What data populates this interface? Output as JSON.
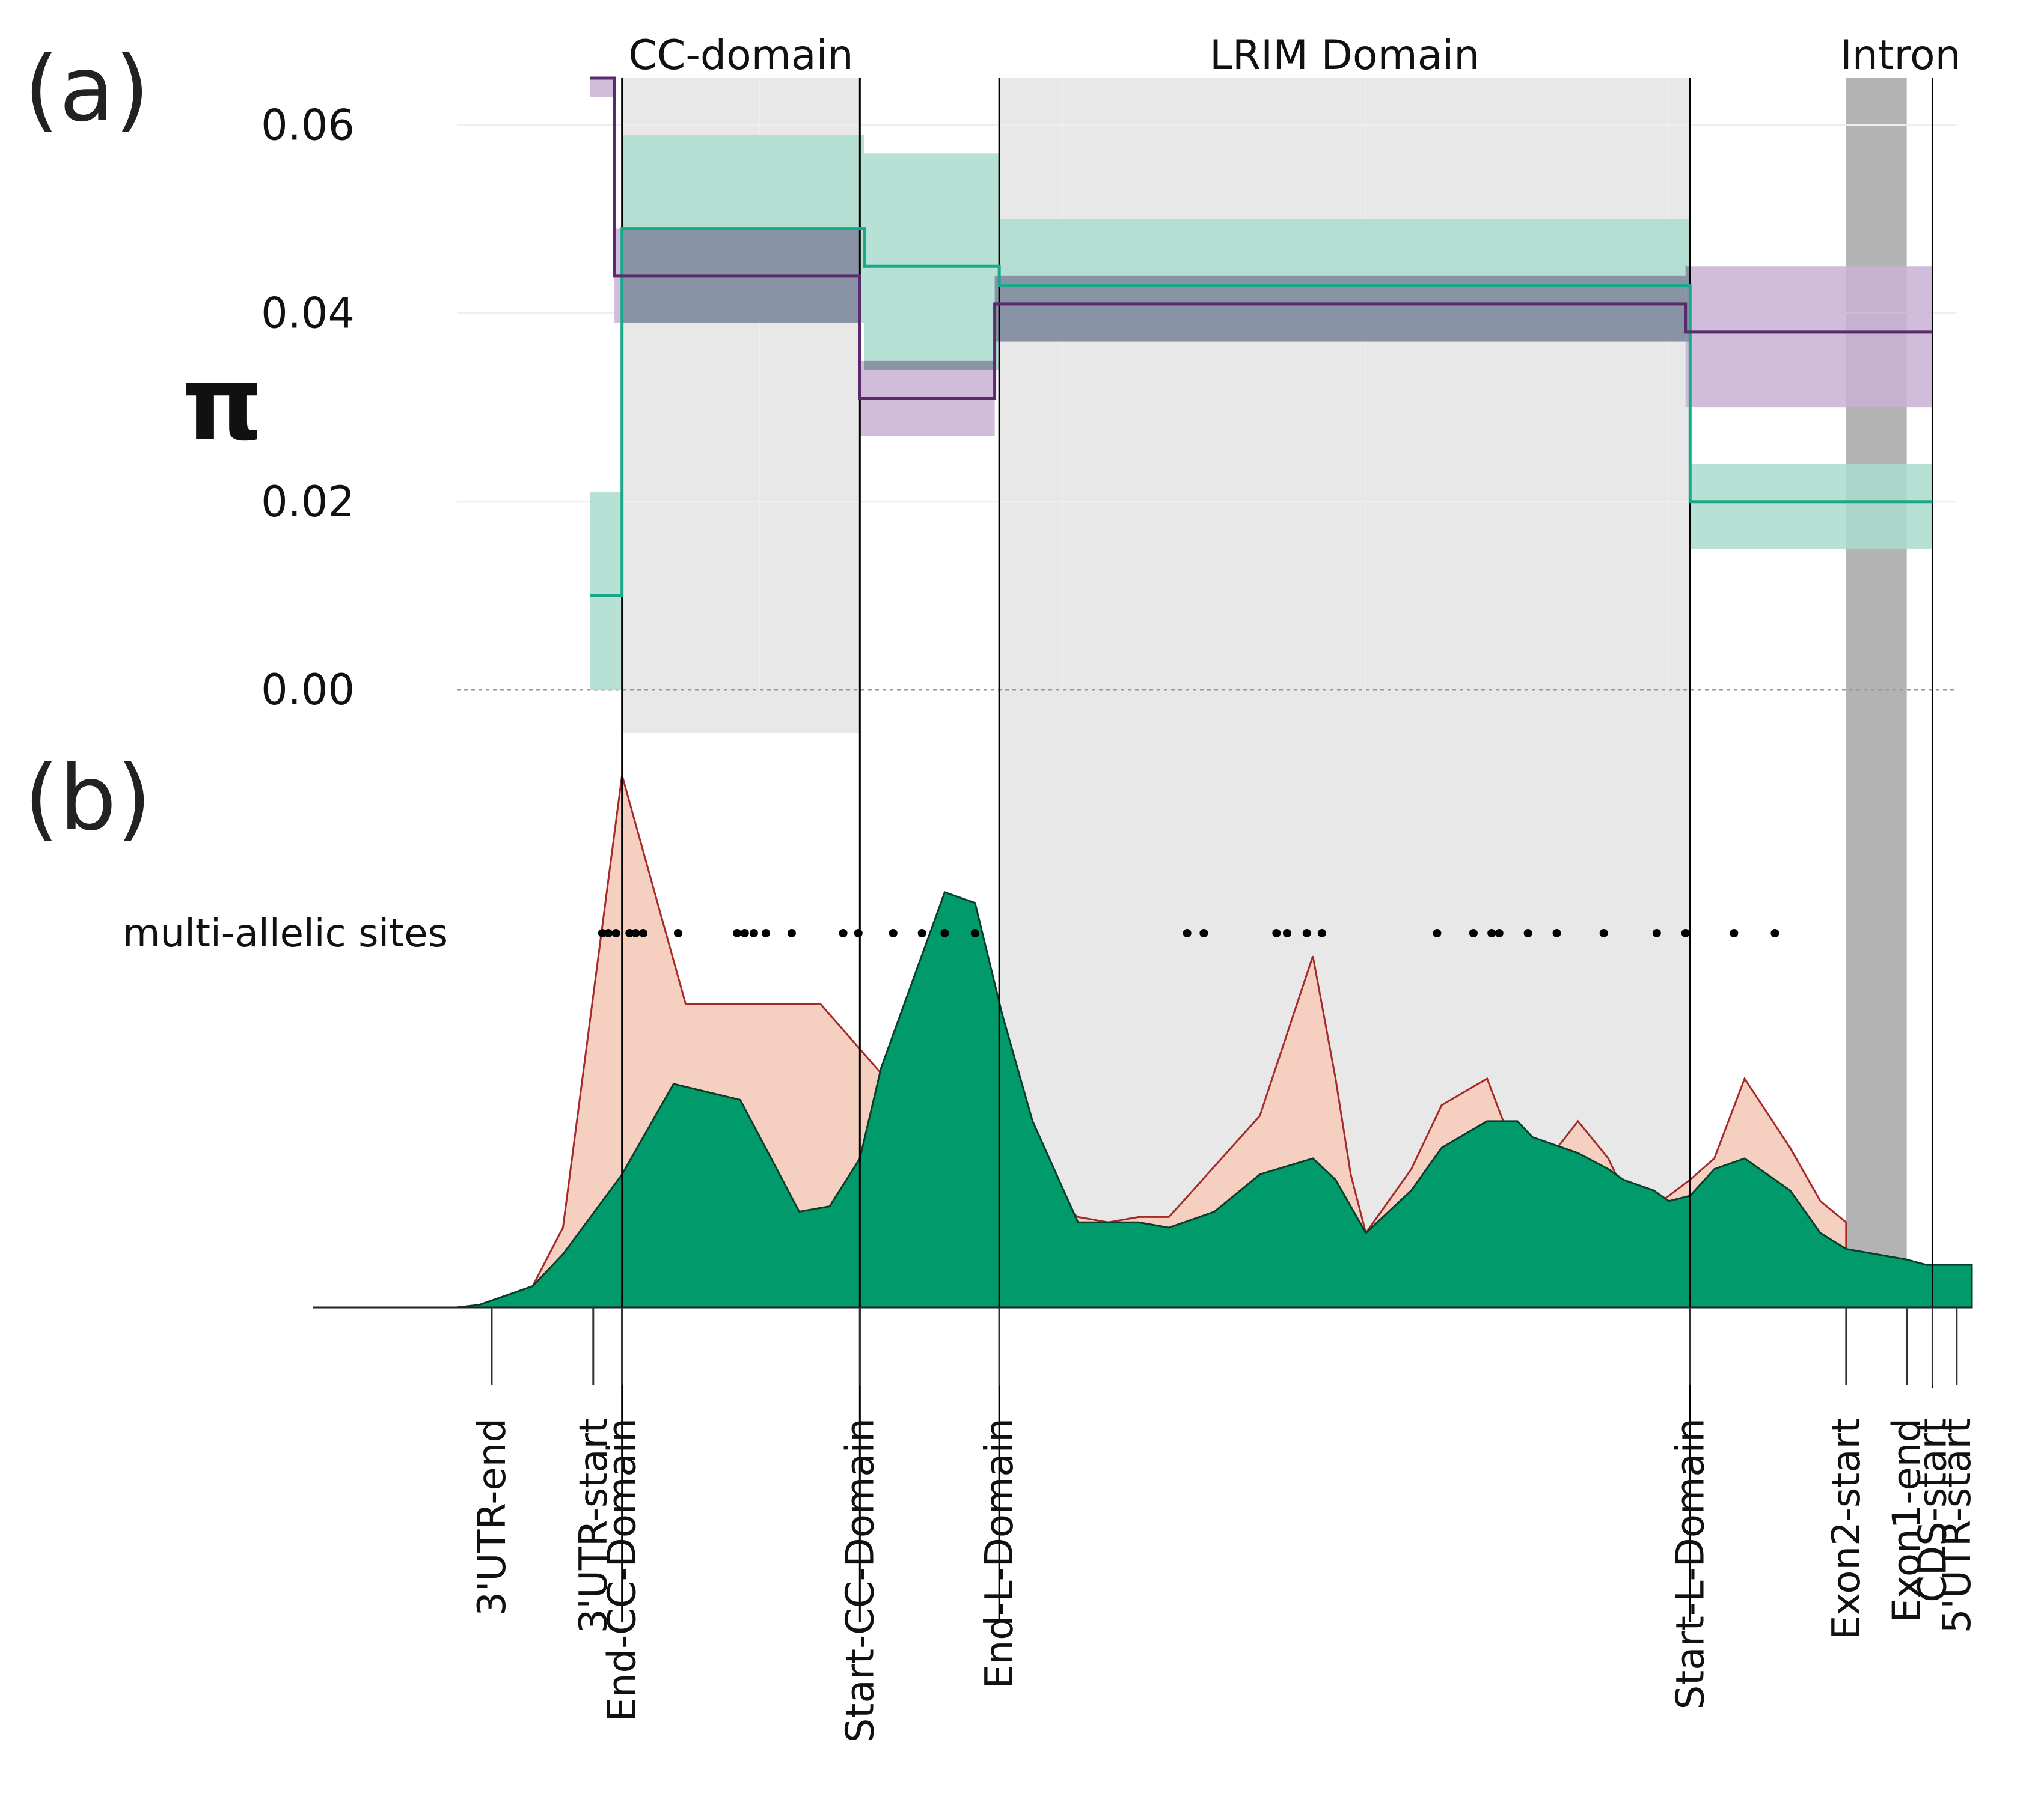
{
  "panels": {
    "a": {
      "label": "(a)"
    },
    "b": {
      "label": "(b)"
    }
  },
  "colors": {
    "background": "#ffffff",
    "domain_shade": "#e8e8e8",
    "intron_shade": "#b3b3b3",
    "teal": "#1aa88a",
    "teal_ci": "#a9dccd",
    "purple": "#5b2a6e",
    "purple_ci": "#c9b0d6",
    "overlap": "#7d8e9c",
    "green_area": "#009a6b",
    "pink_area": "#f5d0c0",
    "pink_line": "#a52a2a",
    "line_black": "#000000",
    "grid": "#eeeeee"
  },
  "chart_data": [
    {
      "type": "step",
      "panel": "(a)",
      "ylabel": "π",
      "ylim": [
        0,
        0.065
      ],
      "yticks": [
        0.0,
        0.02,
        0.04,
        0.06
      ],
      "ytick_labels": [
        "0.00",
        "0.02",
        "0.04",
        "0.06"
      ],
      "x_units": "relative gene position (0-100)",
      "xlim": [
        0,
        100
      ],
      "regions": [
        {
          "name": "CC-domain",
          "start": 10.9,
          "end": 26.6
        },
        {
          "name": "LRIM Domain",
          "start": 35.8,
          "end": 81.4
        },
        {
          "name": "Intron",
          "start": 91.7,
          "end": 95.7
        }
      ],
      "series": [
        {
          "name": "teal",
          "segments": [
            {
              "x0": 8.8,
              "x1": 10.9,
              "value": 0.01,
              "low": 0.0,
              "high": 0.021
            },
            {
              "x0": 10.9,
              "x1": 26.9,
              "value": 0.049,
              "low": 0.039,
              "high": 0.059
            },
            {
              "x0": 26.9,
              "x1": 35.8,
              "value": 0.045,
              "low": 0.034,
              "high": 0.057
            },
            {
              "x0": 35.8,
              "x1": 81.4,
              "value": 0.043,
              "low": 0.037,
              "high": 0.05
            },
            {
              "x0": 81.4,
              "x1": 97.4,
              "value": 0.02,
              "low": 0.015,
              "high": 0.024
            }
          ]
        },
        {
          "name": "purple",
          "segments": [
            {
              "x0": 8.8,
              "x1": 10.4,
              "value": 0.065,
              "low": 0.063,
              "high": 0.065
            },
            {
              "x0": 10.4,
              "x1": 26.6,
              "value": 0.044,
              "low": 0.039,
              "high": 0.049
            },
            {
              "x0": 26.6,
              "x1": 35.5,
              "value": 0.031,
              "low": 0.027,
              "high": 0.035
            },
            {
              "x0": 35.5,
              "x1": 81.1,
              "value": 0.041,
              "low": 0.037,
              "high": 0.044
            },
            {
              "x0": 81.1,
              "x1": 97.4,
              "value": 0.038,
              "low": 0.03,
              "high": 0.045
            }
          ]
        }
      ]
    },
    {
      "type": "area",
      "panel": "(b)",
      "ylim": [
        0,
        100
      ],
      "xlim": [
        0,
        100
      ],
      "series": [
        {
          "name": "pink_upper",
          "x": [
            0,
            1.5,
            3,
            5,
            7,
            10.9,
            15.1,
            24,
            28,
            30,
            34,
            38,
            41,
            43,
            45,
            47,
            53,
            56.5,
            58,
            59,
            60,
            63,
            65,
            68,
            70,
            71,
            74,
            76,
            77,
            79,
            80,
            81.4,
            83,
            85,
            88,
            90,
            91.7
          ],
          "y": [
            0,
            0.5,
            2,
            4,
            15,
            100,
            57,
            57,
            44,
            38,
            35,
            23,
            17,
            16,
            17,
            17,
            36,
            66,
            43,
            25,
            14,
            26,
            38,
            43,
            28,
            24,
            35,
            28,
            22,
            19,
            21,
            24,
            28,
            43,
            30,
            20,
            16
          ]
        },
        {
          "name": "green",
          "x": [
            0,
            1.5,
            3,
            5,
            7,
            10.9,
            14.3,
            18.7,
            22.6,
            24.6,
            26.6,
            28,
            32.2,
            34.2,
            36,
            38,
            41,
            43,
            45,
            47,
            50,
            53,
            56.5,
            58,
            59,
            60,
            63,
            65,
            68,
            70,
            71,
            74,
            76,
            77,
            79,
            80,
            81.4,
            83,
            85,
            88,
            90,
            91.7,
            95.7,
            97,
            100
          ],
          "y": [
            0,
            0.5,
            2,
            4,
            10,
            25,
            42,
            39,
            18,
            19,
            28,
            45,
            78,
            76,
            55,
            35,
            16,
            16,
            16,
            15,
            18,
            25,
            28,
            24,
            19,
            14,
            22,
            30,
            35,
            35,
            32,
            29,
            26,
            24,
            22,
            20,
            21,
            26,
            28,
            22,
            14,
            11,
            9,
            8,
            8
          ]
        }
      ],
      "annotation": "multi-allelic sites",
      "multi_allelic_sites": [
        9.6,
        10.0,
        10.5,
        11.4,
        11.8,
        12.3,
        14.6,
        18.5,
        19.0,
        19.6,
        20.4,
        22.1,
        25.5,
        26.5,
        28.8,
        30.7,
        32.2,
        34.2,
        48.2,
        49.3,
        54.1,
        54.8,
        56.1,
        57.1,
        64.7,
        67.1,
        68.3,
        68.8,
        70.7,
        72.6,
        75.7,
        79.2,
        81.1,
        84.3,
        87.0
      ]
    }
  ],
  "markers": [
    {
      "label": "3'UTR-end",
      "pos": 2.3
    },
    {
      "label": "3'UTR-start",
      "pos": 9.0
    },
    {
      "label": "End-CC-Domain",
      "pos": 10.9
    },
    {
      "label": "Start-CC-Domain",
      "pos": 26.6
    },
    {
      "label": "End-L-Domain",
      "pos": 35.8
    },
    {
      "label": "Start-L-Domain",
      "pos": 81.4
    },
    {
      "label": "Exon2-start",
      "pos": 91.7
    },
    {
      "label": "Exon1-end",
      "pos": 95.7
    },
    {
      "label": "CDS-start",
      "pos": 97.4
    },
    {
      "label": "5'UTR-start",
      "pos": 99.0
    }
  ]
}
